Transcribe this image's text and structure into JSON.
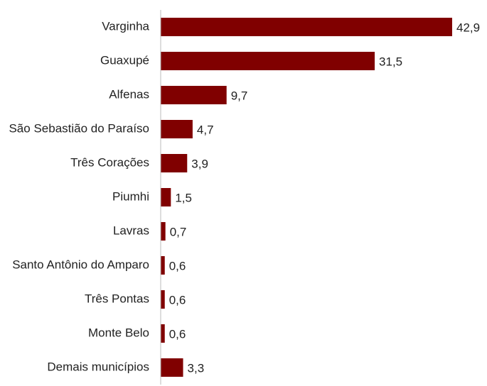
{
  "chart_data": {
    "type": "bar",
    "orientation": "horizontal",
    "categories": [
      "Varginha",
      "Guaxupé",
      "Alfenas",
      "São Sebastião do Paraíso",
      "Três Corações",
      "Piumhi",
      "Lavras",
      "Santo Antônio do Amparo",
      "Três Pontas",
      "Monte Belo",
      "Demais municípios"
    ],
    "values": [
      42.9,
      31.5,
      9.7,
      4.7,
      3.9,
      1.5,
      0.7,
      0.6,
      0.6,
      0.6,
      3.3
    ],
    "value_labels": [
      "42,9",
      "31,5",
      "9,7",
      "4,7",
      "3,9",
      "1,5",
      "0,7",
      "0,6",
      "0,6",
      "0,6",
      "3,3"
    ],
    "color": "#800000"
  }
}
